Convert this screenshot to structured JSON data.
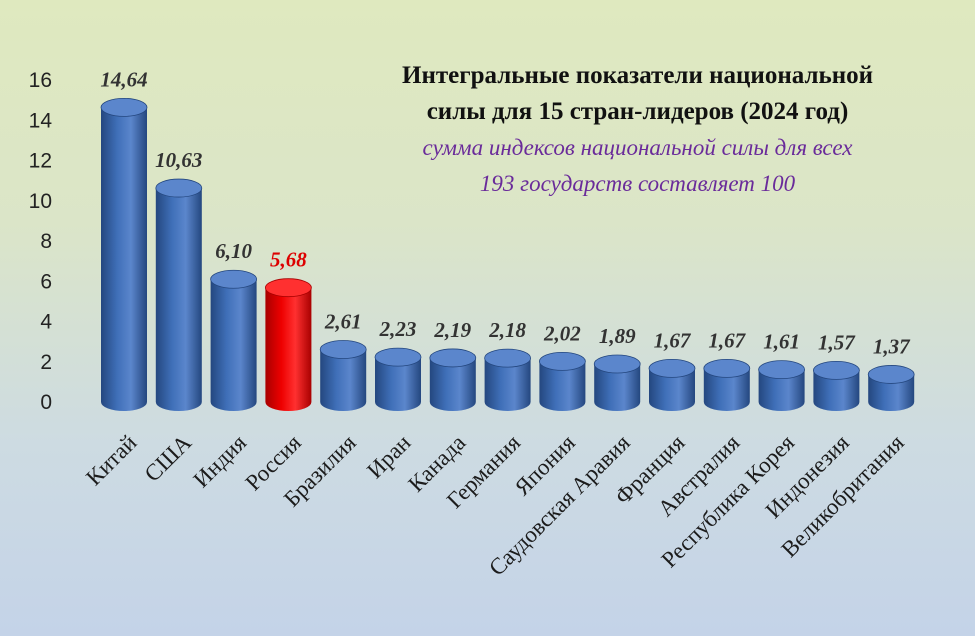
{
  "chart_data": {
    "type": "bar",
    "title": [
      "Интегральные показатели национальной",
      "силы для 15 стран-лидеров (2024 год)"
    ],
    "subtitle": [
      "сумма индексов национальной силы для всех",
      "193 государств составляет 100"
    ],
    "categories": [
      "Китай",
      "США",
      "Индия",
      "Россия",
      "Бразилия",
      "Иран",
      "Канада",
      "Германия",
      "Япония",
      "Саудовская Аравия",
      "Франция",
      "Австралия",
      "Республика Корея",
      "Индонезия",
      "Великобритания"
    ],
    "values": [
      14.64,
      10.63,
      6.1,
      5.68,
      2.61,
      2.23,
      2.19,
      2.18,
      2.02,
      1.89,
      1.67,
      1.67,
      1.61,
      1.57,
      1.37
    ],
    "data_labels": [
      "14,64",
      "10,63",
      "6,10",
      "5,68",
      "2,61",
      "2,23",
      "2,19",
      "2,18",
      "2,02",
      "1,89",
      "1,67",
      "1,67",
      "1,61",
      "1,57",
      "1,37"
    ],
    "yticks": [
      "0",
      "2",
      "4",
      "6",
      "8",
      "10",
      "12",
      "14",
      "16"
    ],
    "ylim": [
      0,
      16
    ],
    "grid": false,
    "highlight_index": 3,
    "colors": {
      "bar": "#3f6fb8",
      "bar_dark": "#24477f",
      "bar_top": "#5b86cc",
      "highlight": "#ee0000",
      "highlight_dark": "#a80000",
      "highlight_top": "#ff3030",
      "label": "#333333",
      "highlight_label": "#dd0000",
      "subtitle": "#6a2b9a"
    }
  }
}
